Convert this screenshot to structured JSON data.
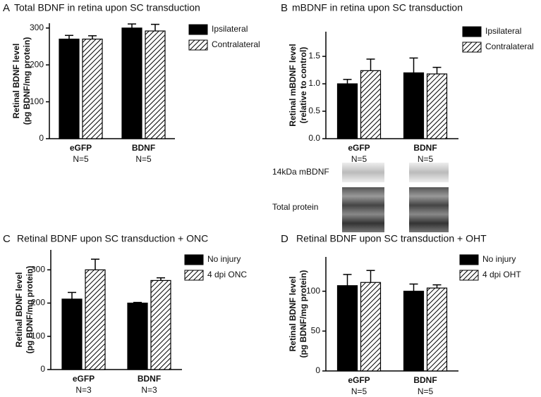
{
  "chart_data": [
    {
      "type": "bar",
      "panel": "A",
      "title": "Total BDNF in retina upon SC transduction",
      "y_label": [
        "Retinal BDNF level",
        "(pg BDNF/mg protein)"
      ],
      "categories": [
        "eGFP",
        "BDNF"
      ],
      "category_notes": [
        "N=5",
        "N=5"
      ],
      "series": [
        {
          "name": "Ipsilateral",
          "color": "#000000",
          "hatch": false,
          "values": [
            270,
            300
          ],
          "errors": [
            10,
            11
          ]
        },
        {
          "name": "Contralateral",
          "color": "#000000",
          "hatch": true,
          "values": [
            270,
            292
          ],
          "errors": [
            9,
            18
          ]
        }
      ],
      "ylim": [
        0,
        313
      ],
      "yticks": [
        0,
        100,
        200,
        300
      ]
    },
    {
      "type": "bar",
      "panel": "B",
      "title": "mBDNF in retina upon SC transduction",
      "y_label": [
        "Retinal mBDNF level",
        "(relative to control)"
      ],
      "categories": [
        "eGFP",
        "BDNF"
      ],
      "category_notes": [
        "N=5",
        "N=5"
      ],
      "blot_labels": [
        "14kDa mBDNF",
        "Total protein"
      ],
      "series": [
        {
          "name": "Ipsilateral",
          "color": "#000000",
          "hatch": false,
          "values": [
            1.0,
            1.2
          ],
          "errors": [
            0.08,
            0.27
          ]
        },
        {
          "name": "Contralateral",
          "color": "#000000",
          "hatch": true,
          "values": [
            1.24,
            1.18
          ],
          "errors": [
            0.21,
            0.12
          ]
        }
      ],
      "ylim": [
        0,
        1.95
      ],
      "yticks": [
        {
          "value": 0,
          "label": "0.0"
        },
        {
          "value": 0.5,
          "label": "0.5"
        },
        {
          "value": 1,
          "label": "1.0"
        },
        {
          "value": 1.5,
          "label": "1.5"
        }
      ]
    },
    {
      "type": "bar",
      "panel": "C",
      "title": "Retinal BDNF upon SC transduction + ONC",
      "y_label": [
        "Retinal BDNF level",
        "(pg BDNF/mg protein)"
      ],
      "categories": [
        "eGFP",
        "BDNF"
      ],
      "category_notes": [
        "N=3",
        "N=3"
      ],
      "series": [
        {
          "name": "No injury",
          "color": "#000000",
          "hatch": false,
          "values": [
            212,
            200
          ],
          "errors": [
            20,
            2
          ]
        },
        {
          "name": "4 dpi ONC",
          "color": "#000000",
          "hatch": true,
          "values": [
            300,
            268
          ],
          "errors": [
            32,
            8
          ]
        }
      ],
      "ylim": [
        0,
        360
      ],
      "yticks": [
        0,
        100,
        200,
        300
      ]
    },
    {
      "type": "bar",
      "panel": "D",
      "title": "Retinal BDNF upon SC transduction + OHT",
      "y_label": [
        "Retinal BDNF level",
        "(pg BDNF/mg protein)"
      ],
      "categories": [
        "eGFP",
        "BDNF"
      ],
      "category_notes": [
        "N=5",
        "N=5"
      ],
      "series": [
        {
          "name": "No injury",
          "color": "#000000",
          "hatch": false,
          "values": [
            107,
            100
          ],
          "errors": [
            14,
            9
          ]
        },
        {
          "name": "4 dpi OHT",
          "color": "#000000",
          "hatch": true,
          "values": [
            111,
            104
          ],
          "errors": [
            15,
            4
          ]
        }
      ],
      "ylim": [
        0,
        143
      ],
      "yticks": [
        0,
        50,
        100
      ]
    }
  ]
}
